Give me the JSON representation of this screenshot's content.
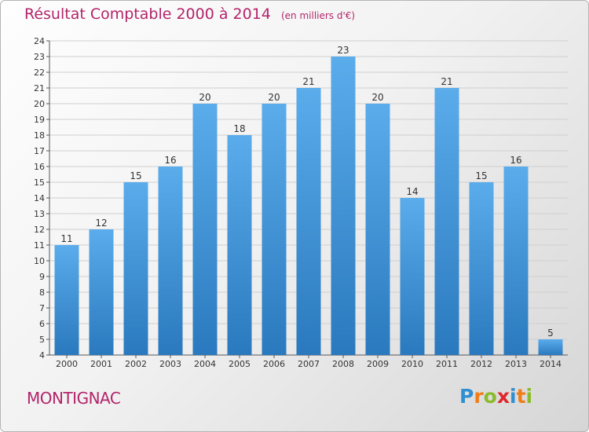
{
  "header": {
    "title": "Résultat Comptable 2000 à 2014",
    "unit_note": "(en milliers d'€)"
  },
  "footer": {
    "commune": "MONTIGNAC",
    "logo_letters": [
      "P",
      "r",
      "o",
      "x",
      "i",
      "t",
      "i"
    ],
    "logo_colors": [
      "#2f8fd2",
      "#f07d1a",
      "#8bbb2a",
      "#e0262c",
      "#2f8fd2",
      "#f07d1a",
      "#8bbb2a"
    ]
  },
  "colors": {
    "bar_light": "#5aaceb",
    "bar_dark": "#2a79be",
    "title": "#b3246a",
    "grid": "#cfcfcf"
  },
  "chart_data": {
    "type": "bar",
    "categories": [
      "2000",
      "2001",
      "2002",
      "2003",
      "2004",
      "2005",
      "2006",
      "2007",
      "2008",
      "2009",
      "2010",
      "2011",
      "2012",
      "2013",
      "2014"
    ],
    "values": [
      11,
      12,
      15,
      16,
      20,
      18,
      20,
      21,
      23,
      20,
      14,
      21,
      15,
      16,
      5
    ],
    "title": "Résultat Comptable 2000 à 2014",
    "subtitle": "(en milliers d'€)",
    "xlabel": "",
    "ylabel": "",
    "ylim": [
      4,
      24
    ],
    "yticks": [
      4,
      5,
      6,
      7,
      8,
      9,
      10,
      11,
      12,
      13,
      14,
      15,
      16,
      17,
      18,
      19,
      20,
      21,
      22,
      23,
      24
    ],
    "grid": true,
    "data_labels": true
  }
}
